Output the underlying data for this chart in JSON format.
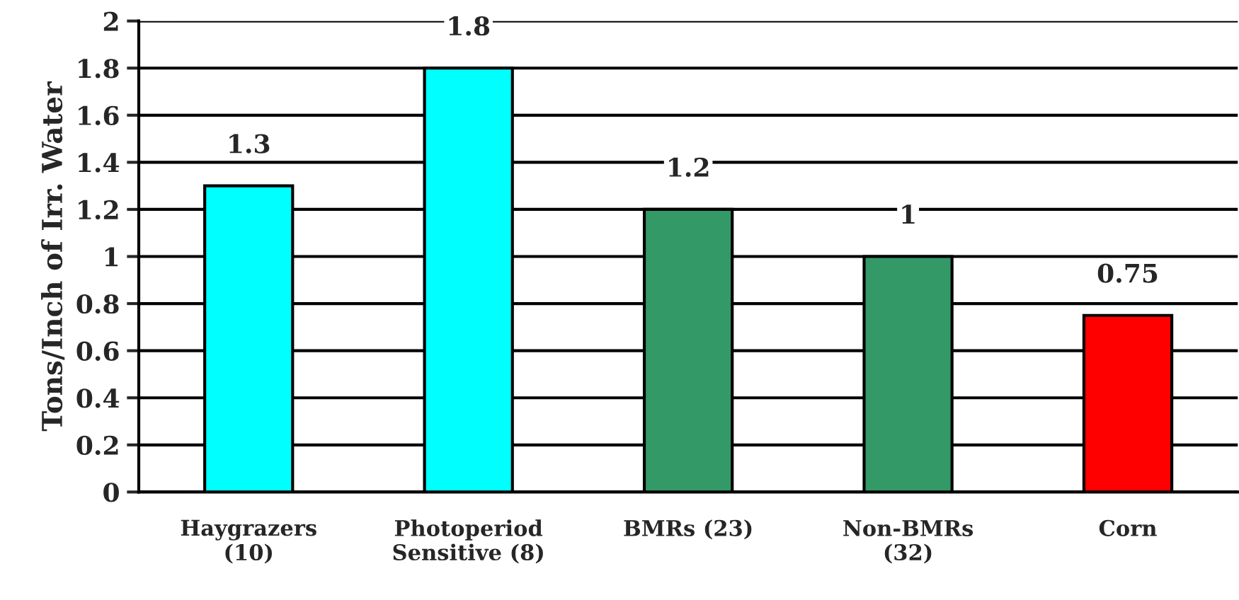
{
  "chart_data": {
    "type": "bar",
    "ylabel": "Tons/Inch of Irr. Water",
    "categories": [
      "Haygrazers\n(10)",
      "Photoperiod\nSensitive (8)",
      "BMRs (23)",
      "Non-BMRs\n(32)",
      "Corn"
    ],
    "values": [
      1.3,
      1.8,
      1.2,
      1,
      0.75
    ],
    "colors": [
      "#00ffff",
      "#00ffff",
      "#339966",
      "#339966",
      "#ff0000"
    ],
    "ylim": [
      0,
      2
    ],
    "yticks": [
      0,
      0.2,
      0.4,
      0.6,
      0.8,
      1,
      1.2,
      1.4,
      1.6,
      1.8,
      2
    ],
    "grid": "y",
    "data_labels": true
  }
}
